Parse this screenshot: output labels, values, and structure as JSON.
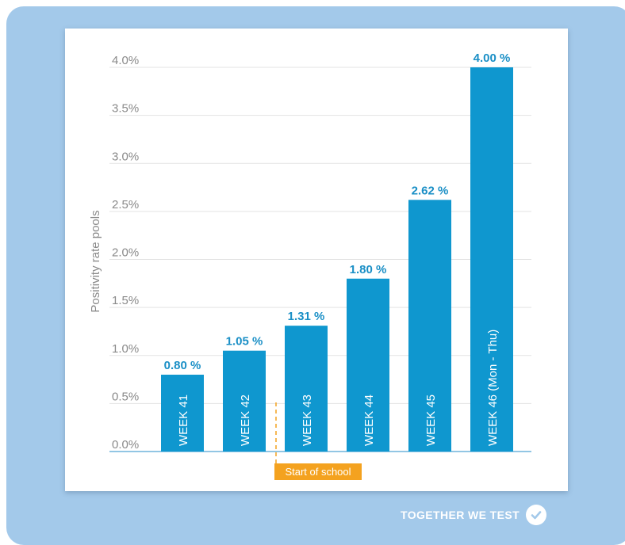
{
  "chart_data": {
    "type": "bar",
    "ylabel": "Positivity rate pools",
    "ylim": [
      0,
      4.0
    ],
    "yticks": [
      "0.0%",
      "0.5%",
      "1.0%",
      "1.5%",
      "2.0%",
      "2.5%",
      "3.0%",
      "3.5%",
      "4.0%"
    ],
    "categories": [
      "WEEK 41",
      "WEEK 42",
      "WEEK 43",
      "WEEK 44",
      "WEEK 45",
      "WEEK 46 (Mon - Thu)"
    ],
    "values": [
      0.8,
      1.05,
      1.31,
      1.8,
      2.62,
      4.0
    ],
    "data_labels": [
      "0.80 %",
      "1.05 %",
      "1.31 %",
      "1.80 %",
      "2.62 %",
      "4.00 %"
    ],
    "annotation": {
      "label": "Start of school",
      "between": [
        "WEEK 42",
        "WEEK 43"
      ]
    },
    "grid": true
  },
  "colors": {
    "bar": "#0f97cf",
    "label": "#1a8fc6",
    "annotation": "#f4a21f",
    "frame": "#a3c9ea",
    "grid": "#e3e3e3",
    "tick": "#8a8a8a"
  },
  "footer": {
    "text": "TOGETHER WE TEST",
    "icon": "check-icon"
  }
}
